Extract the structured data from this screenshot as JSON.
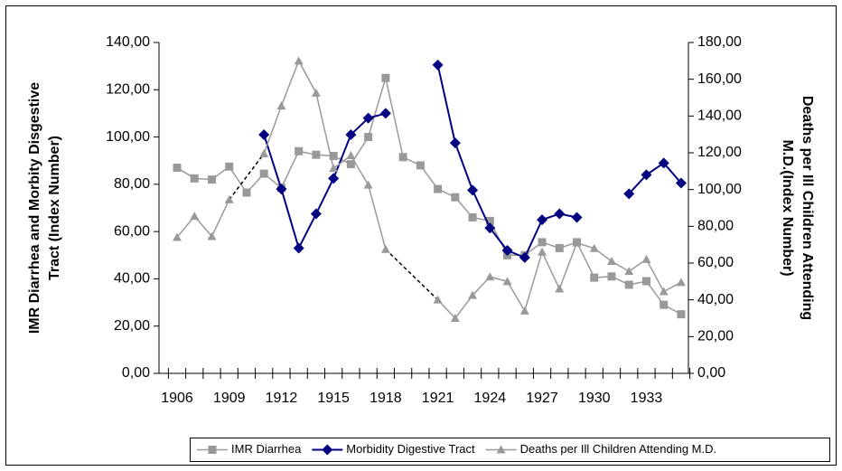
{
  "chart_data": {
    "type": "line",
    "ylabel": [
      "IMR Diarrhea and Morbity Disgestive",
      "Tract (Index Number)"
    ],
    "y2label": [
      "Deaths per Ill Children Attending",
      "M.D.(Index Number)"
    ],
    "categories": [
      1906,
      null,
      null,
      1909,
      null,
      null,
      1912,
      null,
      null,
      1915,
      null,
      null,
      1918,
      null,
      null,
      1921,
      null,
      null,
      1924,
      null,
      null,
      1927,
      null,
      null,
      1930,
      null,
      null,
      1933,
      null,
      null
    ],
    "ylim": [
      0,
      140
    ],
    "yticks": [
      {
        "value": 0,
        "label": "0,00"
      },
      {
        "value": 20,
        "label": "20,00"
      },
      {
        "value": 40,
        "label": "40,00"
      },
      {
        "value": 60,
        "label": "60,00"
      },
      {
        "value": 80,
        "label": "80,00"
      },
      {
        "value": 100,
        "label": "100,00"
      },
      {
        "value": 120,
        "label": "120,00"
      },
      {
        "value": 140,
        "label": "140,00"
      }
    ],
    "y2lim": [
      0,
      180
    ],
    "y2ticks": [
      {
        "value": 0,
        "label": "0,00"
      },
      {
        "value": 20,
        "label": "20,00"
      },
      {
        "value": 40,
        "label": "40,00"
      },
      {
        "value": 60,
        "label": "60,00"
      },
      {
        "value": 80,
        "label": "80,00"
      },
      {
        "value": 100,
        "label": "100,00"
      },
      {
        "value": 120,
        "label": "120,00"
      },
      {
        "value": 140,
        "label": "140,00"
      },
      {
        "value": 160,
        "label": "160,00"
      },
      {
        "value": 180,
        "label": "180,00"
      }
    ],
    "legend": "bottom",
    "series": [
      {
        "name": "IMR Diarrhea",
        "color": "#999999",
        "marker": "square",
        "values": [
          87,
          82.5,
          82,
          87.5,
          76.5,
          84.5,
          78.5,
          94,
          92.5,
          92,
          88.5,
          100,
          125,
          91.5,
          88,
          78,
          74.5,
          66,
          64.5,
          50,
          50,
          55.5,
          53,
          55.5,
          40.5,
          41,
          37.5,
          39,
          29,
          25
        ]
      },
      {
        "name": "Morbidity Digestive Tract",
        "color": "#000080",
        "marker": "diamond",
        "values": [
          null,
          null,
          null,
          null,
          null,
          101,
          78,
          53,
          67.5,
          82.5,
          101,
          108,
          110,
          null,
          null,
          130.5,
          97.5,
          77.5,
          61.5,
          52,
          49,
          65,
          67.5,
          66,
          null,
          null,
          76,
          84,
          89,
          80.5
        ]
      },
      {
        "name": "Deaths per Ill Children Attending M.D.",
        "color": "#999999",
        "marker": "triangle",
        "axis": "y2",
        "connect_gaps": "dashed",
        "values": [
          74,
          85.5,
          74.5,
          94.5,
          null,
          119.5,
          145.5,
          170,
          152.5,
          111.5,
          118.5,
          102.5,
          67.5,
          null,
          null,
          40,
          30,
          42.5,
          52.5,
          50,
          34,
          66,
          46,
          71,
          68,
          61,
          55.5,
          62,
          44.5,
          49.5
        ]
      }
    ]
  }
}
